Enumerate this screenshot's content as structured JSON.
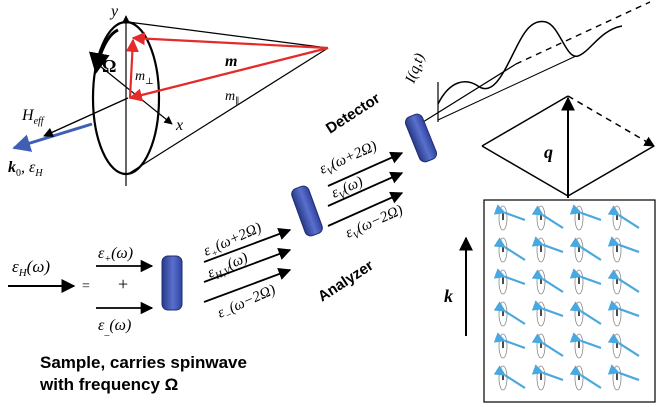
{
  "cone": {
    "axis_y": "y",
    "axis_x": "x",
    "omega": "Ω",
    "m": "m",
    "m_perp_base": "m",
    "m_perp_sub": "⊥",
    "m_par_base": "m",
    "m_par_sub": "∥",
    "heff_base": "H",
    "heff_sub": "eff",
    "k0_base": "k",
    "k0_sub": "0",
    "eps_h_base": ", ε",
    "eps_h_sub": "H"
  },
  "detector": {
    "label": "Detector",
    "intensity": "I(q,t)"
  },
  "analyzer": {
    "label": "Analyzer"
  },
  "beams_after_analyzer": [
    "ε",
    "ε",
    "ε"
  ],
  "beams_after_analyzer_sub": [
    "V",
    "V",
    "V"
  ],
  "beams_after_analyzer_arg": [
    "(ω+2Ω)",
    "(ω)",
    "(ω−2Ω)"
  ],
  "beams_after_sample": [
    "ε",
    "ε",
    "ε"
  ],
  "beams_after_sample_sub": [
    "+",
    "H,V",
    "−"
  ],
  "beams_after_sample_arg": [
    "(ω+2Ω)",
    "(ω)",
    "(ω−2Ω)"
  ],
  "incident": {
    "base": "ε",
    "sub": "H",
    "arg": "(ω)",
    "equals": "=",
    "plus": "+",
    "eps_plus_base": "ε",
    "eps_plus_sub": "+",
    "eps_plus_arg": "(ω)",
    "eps_minus_base": "ε",
    "eps_minus_sub": "_",
    "eps_minus_arg": "(ω)"
  },
  "sample_caption": {
    "line1": "Sample, carries spinwave",
    "line2": "with frequency Ω"
  },
  "scattering": {
    "q": "q",
    "k": "k"
  },
  "colors": {
    "red": "#e32b2b",
    "blue": "#3f5fb5",
    "optic_dark": "#283a8a",
    "optic": "#4a5fc0",
    "spin_arrow": "#4aa8de"
  },
  "spin_grid": {
    "rows": 6,
    "cols": 4
  }
}
